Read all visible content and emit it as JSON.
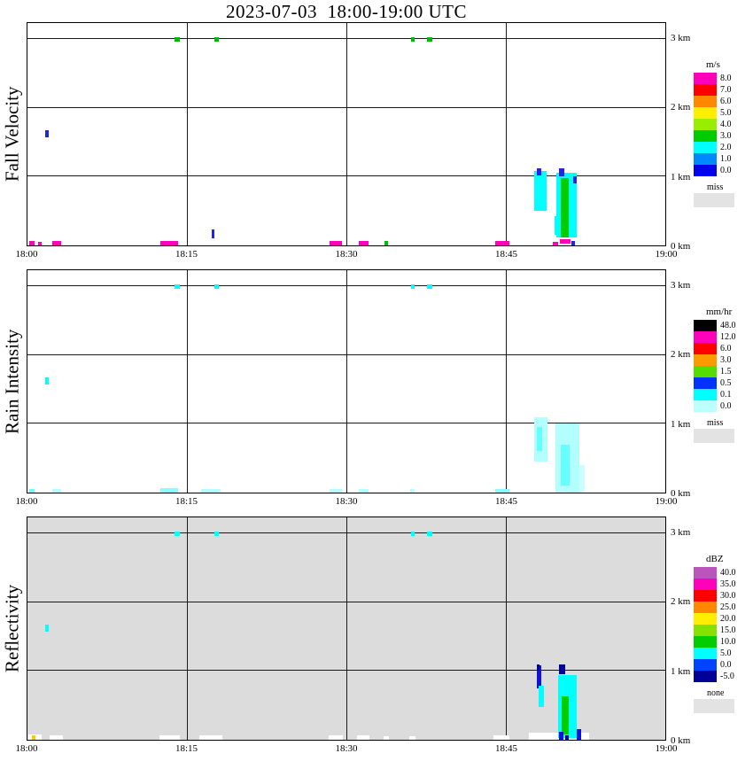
{
  "chart_data": {
    "type": "heatmap",
    "title": "2023-07-03  18:00-19:00 UTC",
    "x_axis": {
      "ticks": [
        "18:00",
        "18:15",
        "18:30",
        "18:45",
        "19:00"
      ],
      "minutes_range": [
        0,
        60
      ],
      "gridlines_min": [
        15,
        30,
        45
      ]
    },
    "y_axis": {
      "ticks": [
        {
          "label": "3 km",
          "km": 3
        },
        {
          "label": "2 km",
          "km": 2
        },
        {
          "label": "1 km",
          "km": 1
        },
        {
          "label": "0 km",
          "km": 0
        }
      ],
      "km_range": [
        0,
        3.23
      ],
      "gridlines_km": [
        1,
        2,
        3
      ]
    },
    "panels": [
      {
        "name": "Fall Velocity",
        "unit": "m/s",
        "background": "#ffffff",
        "legend": [
          {
            "label": "8.0",
            "color": "#ff00bb"
          },
          {
            "label": "7.0",
            "color": "#ff0000"
          },
          {
            "label": "6.0",
            "color": "#ff8800"
          },
          {
            "label": "5.0",
            "color": "#ffee00"
          },
          {
            "label": "4.0",
            "color": "#99ee00"
          },
          {
            "label": "3.0",
            "color": "#00cc00"
          },
          {
            "label": "2.0",
            "color": "#00ffff"
          },
          {
            "label": "1.0",
            "color": "#0088ff"
          },
          {
            "label": "0.0",
            "color": "#0000ee"
          }
        ],
        "no_data": {
          "label": "miss",
          "color": "#e3e3e3"
        },
        "features": [
          {
            "t": 13.8,
            "dt": 0.5,
            "h": 2.96,
            "dh": 0.07,
            "c": "#00bb00"
          },
          {
            "t": 17.6,
            "dt": 0.4,
            "h": 2.96,
            "dh": 0.07,
            "c": "#00bb00"
          },
          {
            "t": 36.1,
            "dt": 0.35,
            "h": 2.96,
            "dh": 0.07,
            "c": "#00bb00"
          },
          {
            "t": 37.6,
            "dt": 0.5,
            "h": 2.96,
            "dh": 0.07,
            "c": "#00bb00"
          },
          {
            "t": 1.7,
            "dt": 0.3,
            "h": 1.57,
            "dh": 0.1,
            "c": "#2222ee"
          },
          {
            "t": 0.2,
            "dt": 0.5,
            "h": 0,
            "dh": 0.06,
            "c": "#ff00bb"
          },
          {
            "t": 1.0,
            "dt": 0.3,
            "h": 0,
            "dh": 0.05,
            "c": "#ff00bb"
          },
          {
            "t": 2.3,
            "dt": 0.9,
            "h": 0,
            "dh": 0.06,
            "c": "#ff00bb"
          },
          {
            "t": 12.5,
            "dt": 1.7,
            "h": 0,
            "dh": 0.07,
            "c": "#ff00bb"
          },
          {
            "t": 17.3,
            "dt": 0.3,
            "h": 0.1,
            "dh": 0.13,
            "c": "#2222ee"
          },
          {
            "t": 28.4,
            "dt": 1.2,
            "h": 0,
            "dh": 0.06,
            "c": "#ff00bb"
          },
          {
            "t": 31.2,
            "dt": 0.9,
            "h": 0,
            "dh": 0.06,
            "c": "#ff00bb"
          },
          {
            "t": 33.6,
            "dt": 0.35,
            "h": 0,
            "dh": 0.06,
            "c": "#00bb00"
          },
          {
            "t": 44.0,
            "dt": 1.3,
            "h": 0,
            "dh": 0.06,
            "c": "#ff00bb"
          },
          {
            "t": 47.7,
            "dt": 1.15,
            "h": 0.5,
            "dh": 0.58,
            "c": "#00ffff"
          },
          {
            "t": 47.9,
            "dt": 0.45,
            "h": 1.02,
            "dh": 0.1,
            "c": "#2222ee"
          },
          {
            "t": 49.75,
            "dt": 1.95,
            "h": 0.12,
            "dh": 0.93,
            "c": "#00ffff"
          },
          {
            "t": 50.2,
            "dt": 0.75,
            "h": 0.12,
            "dh": 0.86,
            "c": "#00cc00"
          },
          {
            "t": 50.0,
            "dt": 0.5,
            "h": 1.0,
            "dh": 0.12,
            "c": "#2222ee"
          },
          {
            "t": 51.35,
            "dt": 0.3,
            "h": 0.9,
            "dh": 0.1,
            "c": "#2222ee"
          },
          {
            "t": 49.6,
            "dt": 0.35,
            "h": 0.15,
            "dh": 0.28,
            "c": "#00ffff"
          },
          {
            "t": 49.4,
            "dt": 0.5,
            "h": 0,
            "dh": 0.05,
            "c": "#ff00bb"
          },
          {
            "t": 50.1,
            "dt": 1.0,
            "h": 0.02,
            "dh": 0.07,
            "c": "#ff00bb"
          },
          {
            "t": 51.2,
            "dt": 0.3,
            "h": 0,
            "dh": 0.07,
            "c": "#2222ee"
          }
        ]
      },
      {
        "name": "Rain Intensity",
        "unit": "mm/hr",
        "background": "#ffffff",
        "legend": [
          {
            "label": "48.0",
            "color": "#000000"
          },
          {
            "label": "12.0",
            "color": "#ff00bb"
          },
          {
            "label": "6.0",
            "color": "#ff0000"
          },
          {
            "label": "3.0",
            "color": "#ff9900"
          },
          {
            "label": "1.5",
            "color": "#55dd00"
          },
          {
            "label": "0.5",
            "color": "#0033ff"
          },
          {
            "label": "0.1",
            "color": "#00ffff"
          },
          {
            "label": "0.0",
            "color": "#bbffff"
          }
        ],
        "no_data": {
          "label": "miss",
          "color": "#e3e3e3"
        },
        "features": [
          {
            "t": 13.8,
            "dt": 0.5,
            "h": 2.96,
            "dh": 0.07,
            "c": "#00ffff"
          },
          {
            "t": 17.6,
            "dt": 0.4,
            "h": 2.96,
            "dh": 0.07,
            "c": "#00ffff"
          },
          {
            "t": 36.1,
            "dt": 0.35,
            "h": 2.96,
            "dh": 0.07,
            "c": "#00ffff"
          },
          {
            "t": 37.6,
            "dt": 0.5,
            "h": 2.96,
            "dh": 0.07,
            "c": "#00ffff"
          },
          {
            "t": 1.7,
            "dt": 0.3,
            "h": 1.57,
            "dh": 0.1,
            "c": "#00ffff"
          },
          {
            "t": 0.2,
            "dt": 0.5,
            "h": 0,
            "dh": 0.05,
            "c": "#66ffff"
          },
          {
            "t": 2.3,
            "dt": 0.9,
            "h": 0,
            "dh": 0.05,
            "c": "#b3ffff"
          },
          {
            "t": 12.5,
            "dt": 1.7,
            "h": 0,
            "dh": 0.06,
            "c": "#88ffff"
          },
          {
            "t": 16.3,
            "dt": 1.9,
            "h": 0,
            "dh": 0.05,
            "c": "#b3ffff"
          },
          {
            "t": 28.4,
            "dt": 1.2,
            "h": 0,
            "dh": 0.05,
            "c": "#b3ffff"
          },
          {
            "t": 31.2,
            "dt": 0.9,
            "h": 0,
            "dh": 0.05,
            "c": "#b3ffff"
          },
          {
            "t": 36.0,
            "dt": 0.45,
            "h": 0,
            "dh": 0.05,
            "c": "#b3ffff"
          },
          {
            "t": 44.0,
            "dt": 1.3,
            "h": 0,
            "dh": 0.05,
            "c": "#88ffff"
          },
          {
            "t": 47.7,
            "dt": 1.2,
            "h": 0.45,
            "dh": 0.65,
            "c": "#b3ffff"
          },
          {
            "t": 47.9,
            "dt": 0.5,
            "h": 0.6,
            "dh": 0.35,
            "c": "#66ffff"
          },
          {
            "t": 49.7,
            "dt": 2.2,
            "h": 0,
            "dh": 1.0,
            "c": "#b3ffff"
          },
          {
            "t": 50.2,
            "dt": 0.8,
            "h": 0.1,
            "dh": 0.6,
            "c": "#66ffff"
          },
          {
            "t": 51.9,
            "dt": 0.5,
            "h": 0,
            "dh": 0.4,
            "c": "#ccffff"
          }
        ]
      },
      {
        "name": "Reflectivity",
        "unit": "dBZ",
        "background": "#dcdcdc",
        "legend": [
          {
            "label": "40.0",
            "color": "#bb55bb"
          },
          {
            "label": "35.0",
            "color": "#ff00bb"
          },
          {
            "label": "30.0",
            "color": "#ff0000"
          },
          {
            "label": "25.0",
            "color": "#ff8800"
          },
          {
            "label": "20.0",
            "color": "#ffee00"
          },
          {
            "label": "15.0",
            "color": "#88e000"
          },
          {
            "label": "10.0",
            "color": "#00cc00"
          },
          {
            "label": "5.0",
            "color": "#00ffff"
          },
          {
            "label": "0.0",
            "color": "#0044ff"
          },
          {
            "label": "-5.0",
            "color": "#000099"
          }
        ],
        "no_data": {
          "label": "none",
          "color": "#e3e3e3"
        },
        "features": [
          {
            "t": 13.8,
            "dt": 0.5,
            "h": 2.96,
            "dh": 0.07,
            "c": "#00ffff"
          },
          {
            "t": 17.6,
            "dt": 0.4,
            "h": 2.96,
            "dh": 0.07,
            "c": "#00ffff"
          },
          {
            "t": 36.1,
            "dt": 0.35,
            "h": 2.96,
            "dh": 0.07,
            "c": "#00ffff"
          },
          {
            "t": 37.6,
            "dt": 0.5,
            "h": 2.96,
            "dh": 0.07,
            "c": "#00ffff"
          },
          {
            "t": 1.7,
            "dt": 0.3,
            "h": 1.57,
            "dh": 0.1,
            "c": "#00ffff"
          },
          {
            "t": 0.1,
            "dt": 1.2,
            "h": 0,
            "dh": 0.08,
            "c": "#ffffff"
          },
          {
            "t": 0.45,
            "dt": 0.3,
            "h": 0,
            "dh": 0.07,
            "c": "#ffcc00"
          },
          {
            "t": 2.1,
            "dt": 1.2,
            "h": 0,
            "dh": 0.07,
            "c": "#ffffff"
          },
          {
            "t": 12.4,
            "dt": 1.9,
            "h": 0,
            "dh": 0.07,
            "c": "#ffffff"
          },
          {
            "t": 16.2,
            "dt": 2.1,
            "h": 0,
            "dh": 0.06,
            "c": "#ffffff"
          },
          {
            "t": 28.3,
            "dt": 1.4,
            "h": 0,
            "dh": 0.06,
            "c": "#ffffff"
          },
          {
            "t": 31.0,
            "dt": 1.2,
            "h": 0,
            "dh": 0.06,
            "c": "#ffffff"
          },
          {
            "t": 33.5,
            "dt": 0.5,
            "h": 0,
            "dh": 0.05,
            "c": "#ffffff"
          },
          {
            "t": 35.9,
            "dt": 0.6,
            "h": 0,
            "dh": 0.05,
            "c": "#ffffff"
          },
          {
            "t": 43.8,
            "dt": 1.5,
            "h": 0,
            "dh": 0.06,
            "c": "#ffffff"
          },
          {
            "t": 47.2,
            "dt": 5.6,
            "h": 0,
            "dh": 0.1,
            "c": "#ffffff"
          },
          {
            "t": 47.9,
            "dt": 0.45,
            "h": 0.75,
            "dh": 0.33,
            "c": "#1111dd"
          },
          {
            "t": 48.1,
            "dt": 0.45,
            "h": 0.48,
            "dh": 0.3,
            "c": "#00ffff"
          },
          {
            "t": 47.9,
            "dt": 0.3,
            "h": 1.0,
            "dh": 0.1,
            "c": "#000099"
          },
          {
            "t": 49.9,
            "dt": 1.75,
            "h": 0.02,
            "dh": 0.92,
            "c": "#00ffff"
          },
          {
            "t": 50.0,
            "dt": 0.6,
            "h": 0.95,
            "dh": 0.14,
            "c": "#000099"
          },
          {
            "t": 50.25,
            "dt": 0.7,
            "h": 0.08,
            "dh": 0.55,
            "c": "#00cc00"
          },
          {
            "t": 50.0,
            "dt": 0.4,
            "h": 0,
            "dh": 0.12,
            "c": "#1111dd"
          },
          {
            "t": 51.7,
            "dt": 0.35,
            "h": 0,
            "dh": 0.16,
            "c": "#1111dd"
          },
          {
            "t": 50.6,
            "dt": 0.35,
            "h": 0,
            "dh": 0.06,
            "c": "#000099"
          }
        ]
      }
    ]
  }
}
